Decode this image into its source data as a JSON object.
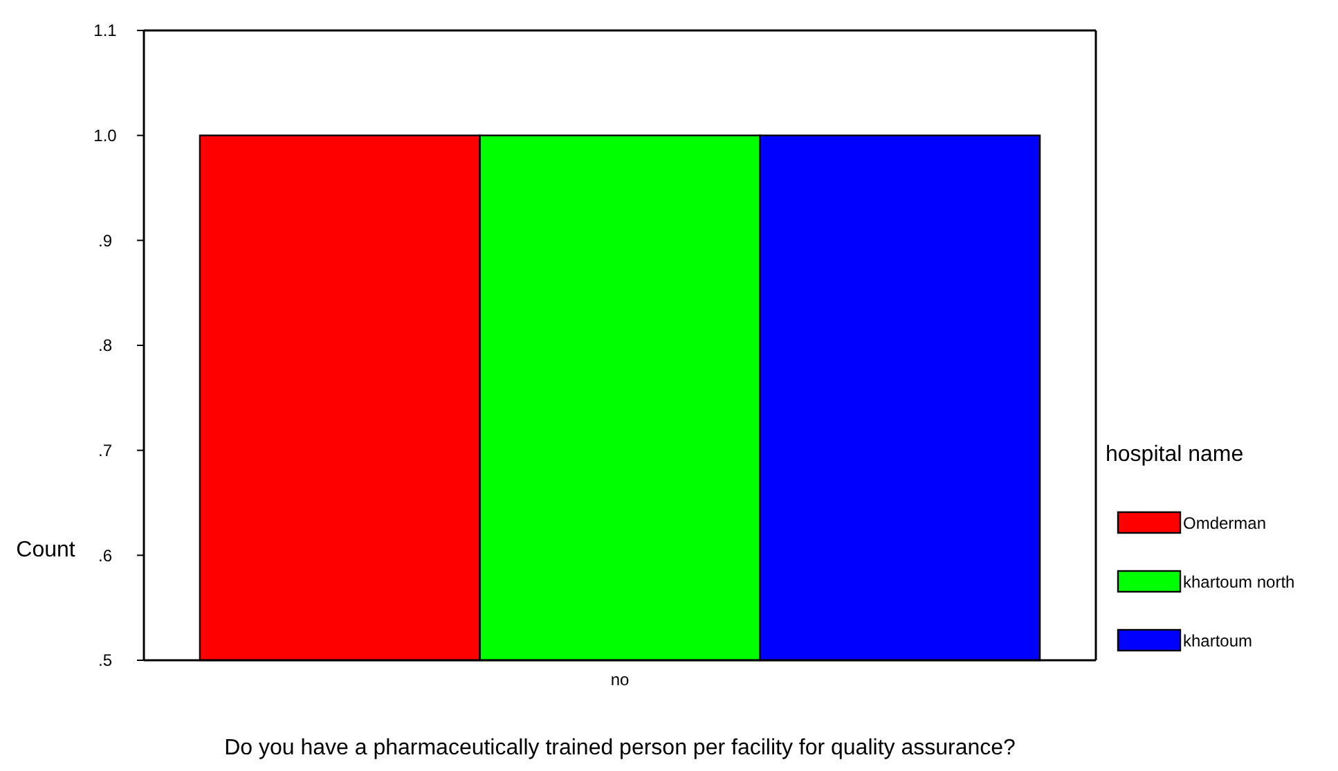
{
  "chart_data": {
    "type": "bar",
    "xlabel": "Do you have a pharmaceutically trained person per facility for quality assurance?",
    "ylabel": "Count",
    "legend_title": "hospital name",
    "categories": [
      "no"
    ],
    "series": [
      {
        "name": "Omderman",
        "color": "#ff0000",
        "values": [
          1.0
        ]
      },
      {
        "name": "khartoum north",
        "color": "#00ff00",
        "values": [
          1.0
        ]
      },
      {
        "name": "khartoum",
        "color": "#0000ff",
        "values": [
          1.0
        ]
      }
    ],
    "ylim": [
      0.5,
      1.1
    ],
    "yticks": [
      {
        "value": 0.5,
        "label": ".5"
      },
      {
        "value": 0.6,
        "label": ".6"
      },
      {
        "value": 0.7,
        "label": ".7"
      },
      {
        "value": 0.8,
        "label": ".8"
      },
      {
        "value": 0.9,
        "label": ".9"
      },
      {
        "value": 1.0,
        "label": "1.0"
      },
      1.1
    ],
    "grid": false,
    "legend": "right"
  }
}
